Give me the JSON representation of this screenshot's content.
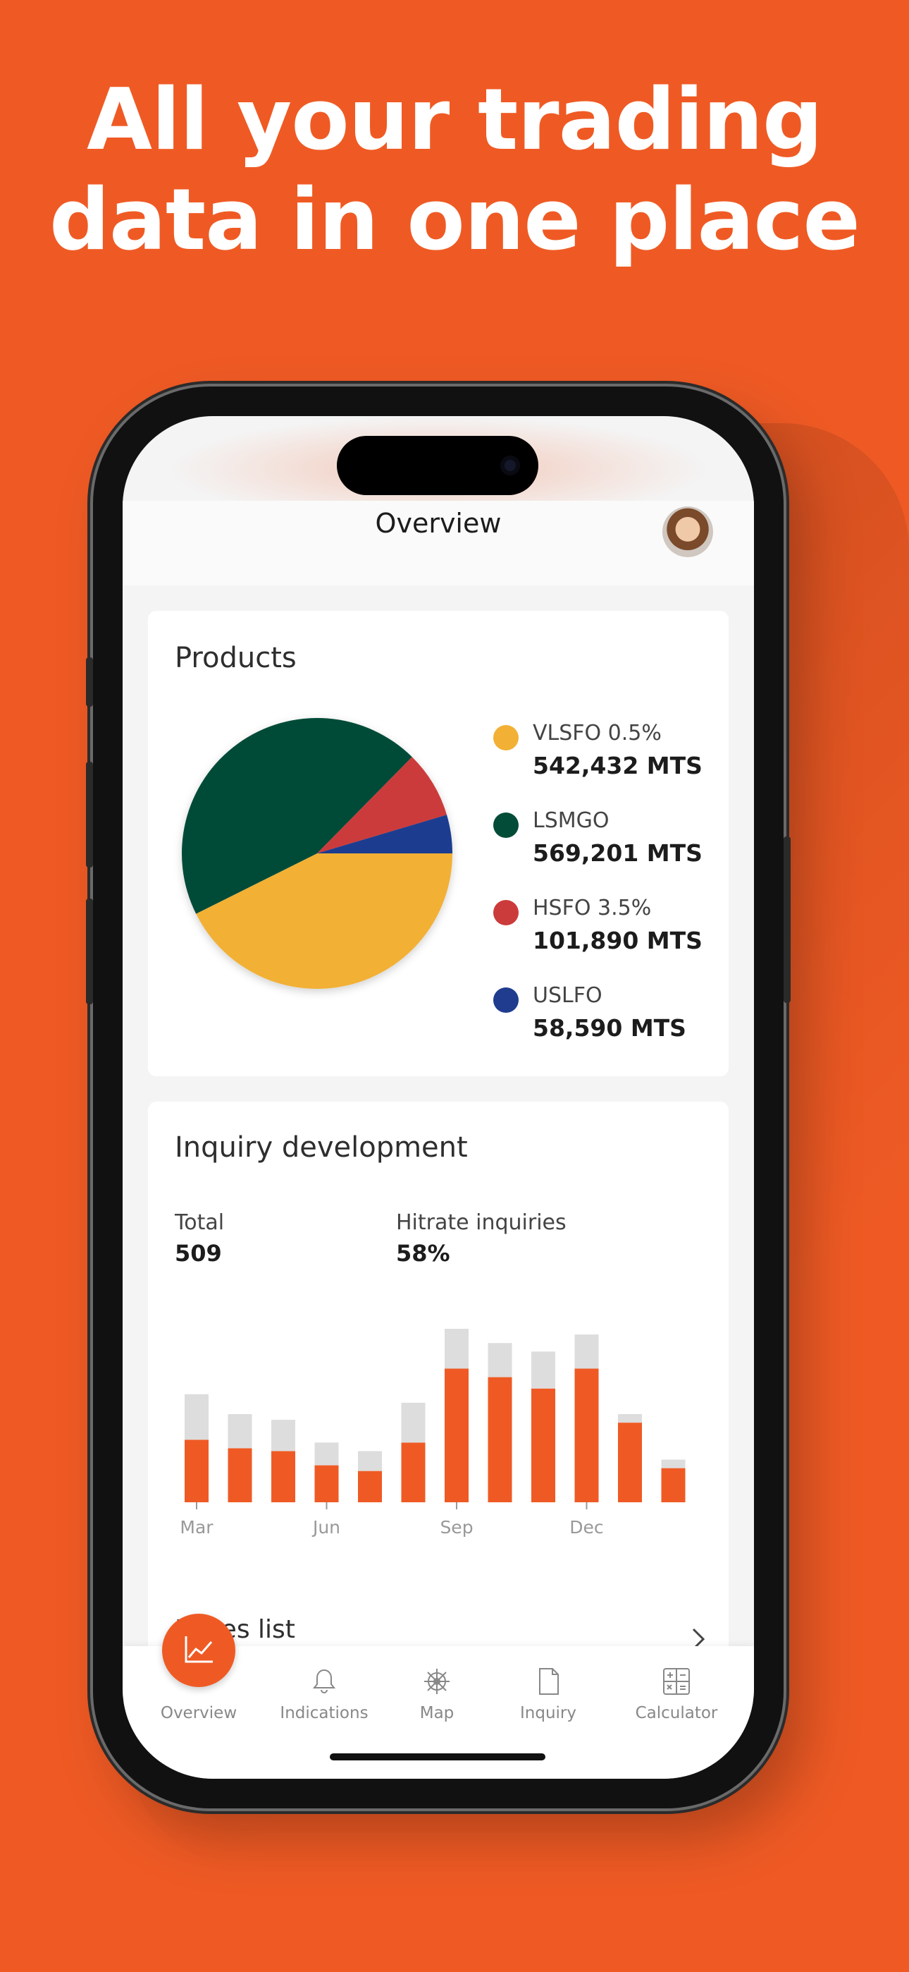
{
  "headline": {
    "line1": "All your trading",
    "line2": "data in one place"
  },
  "screen": {
    "title": "Overview",
    "products": {
      "title": "Products",
      "items": [
        {
          "name": "VLSFO 0.5%",
          "value": "542,432 MTS",
          "color": "#F2B035"
        },
        {
          "name": "LSMGO",
          "value": "569,201 MTS",
          "color": "#034C38"
        },
        {
          "name": "HSFO 3.5%",
          "value": "101,890 MTS",
          "color": "#CC3B3B"
        },
        {
          "name": "USLFO",
          "value": "58,590 MTS",
          "color": "#1F3C8F"
        }
      ]
    },
    "inquiry": {
      "title": "Inquiry development",
      "total_label": "Total",
      "total_value": "509",
      "hitrate_label": "Hitrate inquiries",
      "hitrate_value": "58%"
    },
    "prices_list": {
      "label": "Prices list"
    },
    "nav": [
      {
        "label": "Overview",
        "icon": "chart-line-icon",
        "active": true
      },
      {
        "label": "Indications",
        "icon": "bell-icon"
      },
      {
        "label": "Map",
        "icon": "ship-wheel-icon"
      },
      {
        "label": "Inquiry",
        "icon": "document-icon"
      },
      {
        "label": "Calculator",
        "icon": "calculator-icon"
      }
    ]
  },
  "chart_data": [
    {
      "type": "pie",
      "title": "Products",
      "categories": [
        "VLSFO 0.5%",
        "LSMGO",
        "HSFO 3.5%",
        "USLFO"
      ],
      "values": [
        542432,
        569201,
        101890,
        58590
      ],
      "colors": [
        "#F2B035",
        "#034C38",
        "#CC3B3B",
        "#1F3C8F"
      ]
    },
    {
      "type": "bar",
      "title": "Inquiry development",
      "stacked": true,
      "tick_labels": [
        "Mar",
        "Jun",
        "Sep",
        "Dec"
      ],
      "tick_indices": [
        0,
        3,
        6,
        9
      ],
      "series": [
        {
          "color": "#EF5A24",
          "values": [
            22,
            19,
            18,
            13,
            11,
            21,
            47,
            44,
            40,
            47,
            28,
            12
          ]
        },
        {
          "color": "#DDDDDD",
          "values": [
            16,
            12,
            11,
            8,
            7,
            14,
            14,
            12,
            13,
            12,
            3,
            3
          ]
        }
      ],
      "ylim": [
        0,
        62
      ],
      "grid": false
    }
  ]
}
